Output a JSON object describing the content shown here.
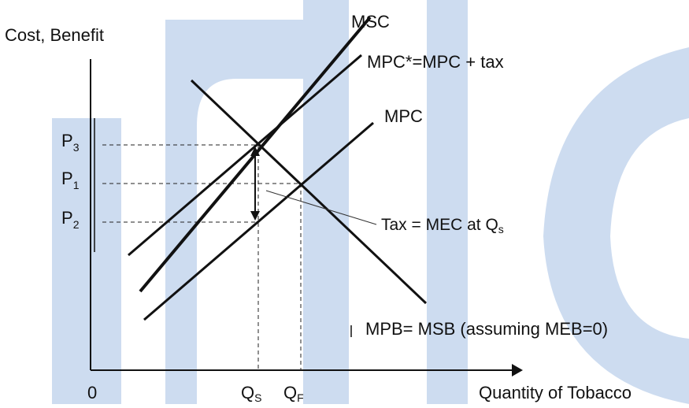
{
  "watermark": {
    "color": "#c9d9ee",
    "description_free": true
  },
  "axes": {
    "y_label": "Cost, Benefit",
    "x_label": "Quantity of Tobacco",
    "origin": "0"
  },
  "curves": {
    "msc": "MSC",
    "mpc_star": "MPC*=MPC + tax",
    "mpc": "MPC",
    "mpb": "MPB= MSB (assuming MEB=0)"
  },
  "prices": {
    "p3": "P",
    "p3_sub": "3",
    "p1": "P",
    "p1_sub": "1",
    "p2": "P",
    "p2_sub": "2"
  },
  "quantities": {
    "qs": "Q",
    "qs_sub": "S",
    "qf": "Q",
    "qf_sub": "F"
  },
  "annotation": {
    "tax": "Tax = MEC at Q",
    "tax_sub": "s"
  }
}
